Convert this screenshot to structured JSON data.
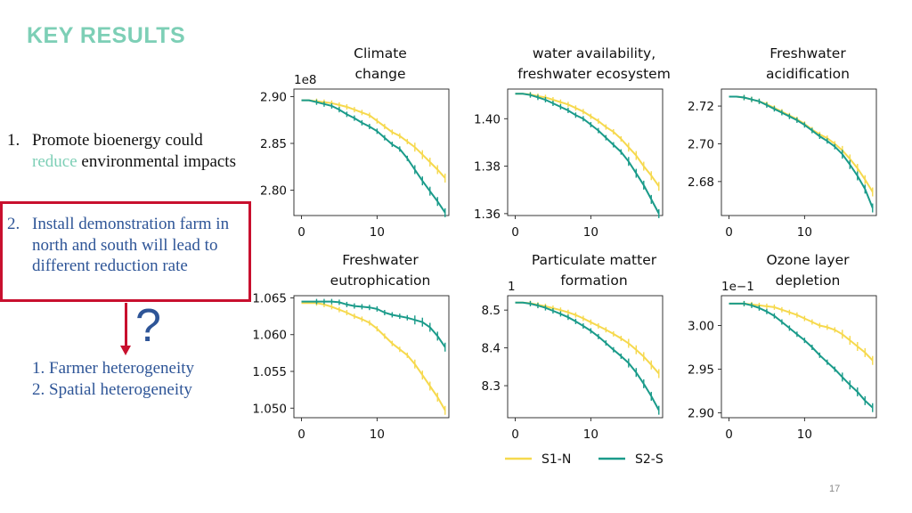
{
  "page": {
    "title": "KEY RESULTS",
    "page_number": "17"
  },
  "points": {
    "p1_num": "1.",
    "p1_part1": "Promote bioenergy could",
    "p1_accent": "reduce",
    "p1_part2": " environmental impacts",
    "p2_num": "2.",
    "p2_text": "Install demonstration farm in north and south will lead to different reduction rate",
    "question_mark": "?",
    "reasons": [
      "1.   Farmer heterogeneity",
      "2.   Spatial heterogeneity"
    ]
  },
  "colors": {
    "s1": "#f6d94e",
    "s2": "#1a9b8a",
    "accent": "#7dcfb6",
    "blue": "#2e5597",
    "red": "#c8102e"
  },
  "legend": [
    "S1-N",
    "S2-S"
  ],
  "chart_data": [
    {
      "type": "line",
      "title": [
        "Climate",
        "change"
      ],
      "offset": "1e8",
      "xticks": [
        0,
        10
      ],
      "yticks": [
        2.8,
        2.85,
        2.9
      ],
      "ytick_labels": [
        "2.80",
        "2.85",
        "2.90"
      ],
      "xlim": [
        -1,
        19.5
      ],
      "ylim": [
        2.773,
        2.908
      ],
      "series": [
        {
          "name": "S1-N",
          "x": [
            0,
            1,
            2,
            3,
            4,
            5,
            6,
            7,
            8,
            9,
            10,
            11,
            12,
            13,
            14,
            15,
            16,
            17,
            18,
            19
          ],
          "values": [
            2.896,
            2.896,
            2.895,
            2.894,
            2.893,
            2.891,
            2.889,
            2.886,
            2.883,
            2.88,
            2.874,
            2.868,
            2.862,
            2.858,
            2.852,
            2.846,
            2.838,
            2.83,
            2.822,
            2.813
          ]
        },
        {
          "name": "S2-S",
          "x": [
            0,
            1,
            2,
            3,
            4,
            5,
            6,
            7,
            8,
            9,
            10,
            11,
            12,
            13,
            14,
            15,
            16,
            17,
            18,
            19
          ],
          "values": [
            2.896,
            2.896,
            2.894,
            2.892,
            2.89,
            2.886,
            2.881,
            2.877,
            2.872,
            2.868,
            2.863,
            2.856,
            2.849,
            2.844,
            2.834,
            2.822,
            2.81,
            2.799,
            2.788,
            2.776
          ]
        }
      ]
    },
    {
      "type": "line",
      "title": [
        "water availability,",
        "freshwater ecosystem"
      ],
      "offset": "",
      "xticks": [
        0,
        10
      ],
      "yticks": [
        1.36,
        1.38,
        1.4
      ],
      "ytick_labels": [
        "1.36",
        "1.38",
        "1.40"
      ],
      "xlim": [
        -1,
        19.5
      ],
      "ylim": [
        1.3592,
        1.4125
      ],
      "series": [
        {
          "name": "S1-N",
          "x": [
            0,
            1,
            2,
            3,
            4,
            5,
            6,
            7,
            8,
            9,
            10,
            11,
            12,
            13,
            14,
            15,
            16,
            17,
            18,
            19
          ],
          "values": [
            1.4105,
            1.4105,
            1.4102,
            1.4095,
            1.409,
            1.408,
            1.407,
            1.406,
            1.4045,
            1.403,
            1.401,
            1.399,
            1.3965,
            1.3945,
            1.3915,
            1.388,
            1.3845,
            1.38,
            1.376,
            1.3715
          ]
        },
        {
          "name": "S2-S",
          "x": [
            0,
            1,
            2,
            3,
            4,
            5,
            6,
            7,
            8,
            9,
            10,
            11,
            12,
            13,
            14,
            15,
            16,
            17,
            18,
            19
          ],
          "values": [
            1.4105,
            1.4105,
            1.41,
            1.409,
            1.408,
            1.4065,
            1.405,
            1.4035,
            1.4015,
            1.4,
            1.3975,
            1.395,
            1.392,
            1.389,
            1.386,
            1.382,
            1.377,
            1.372,
            1.366,
            1.36
          ]
        }
      ]
    },
    {
      "type": "line",
      "title": [
        "Freshwater",
        "acidification"
      ],
      "offset": "",
      "xticks": [
        0,
        10
      ],
      "yticks": [
        2.68,
        2.7,
        2.72
      ],
      "ytick_labels": [
        "2.68",
        "2.70",
        "2.72"
      ],
      "xlim": [
        -1,
        19.5
      ],
      "ylim": [
        2.662,
        2.729
      ],
      "series": [
        {
          "name": "S1-N",
          "x": [
            0,
            1,
            2,
            3,
            4,
            5,
            6,
            7,
            8,
            9,
            10,
            11,
            12,
            13,
            14,
            15,
            16,
            17,
            18,
            19
          ],
          "values": [
            2.725,
            2.725,
            2.7245,
            2.7235,
            2.7225,
            2.721,
            2.719,
            2.717,
            2.715,
            2.713,
            2.7105,
            2.7075,
            2.705,
            2.703,
            2.7,
            2.6965,
            2.692,
            2.687,
            2.681,
            2.6745
          ]
        },
        {
          "name": "S2-S",
          "x": [
            0,
            1,
            2,
            3,
            4,
            5,
            6,
            7,
            8,
            9,
            10,
            11,
            12,
            13,
            14,
            15,
            16,
            17,
            18,
            19
          ],
          "values": [
            2.725,
            2.725,
            2.7245,
            2.7235,
            2.7225,
            2.7205,
            2.7185,
            2.7165,
            2.7145,
            2.7125,
            2.71,
            2.707,
            2.704,
            2.7015,
            2.6985,
            2.6945,
            2.689,
            2.683,
            2.676,
            2.666
          ]
        }
      ]
    },
    {
      "type": "line",
      "title": [
        "Freshwater",
        "eutrophication"
      ],
      "offset": "",
      "xticks": [
        0,
        10
      ],
      "yticks": [
        1.05,
        1.055,
        1.06,
        1.065
      ],
      "ytick_labels": [
        "1.050",
        "1.055",
        "1.060",
        "1.065"
      ],
      "xlim": [
        -1,
        19.5
      ],
      "ylim": [
        1.0487,
        1.0653
      ],
      "series": [
        {
          "name": "S1-N",
          "x": [
            0,
            1,
            2,
            3,
            4,
            5,
            6,
            7,
            8,
            9,
            10,
            11,
            12,
            13,
            14,
            15,
            16,
            17,
            18,
            19
          ],
          "values": [
            1.0643,
            1.0643,
            1.0643,
            1.0641,
            1.0638,
            1.0634,
            1.063,
            1.0625,
            1.0621,
            1.0616,
            1.0608,
            1.0598,
            1.0588,
            1.058,
            1.0572,
            1.056,
            1.0545,
            1.053,
            1.0515,
            1.0497
          ]
        },
        {
          "name": "S2-S",
          "x": [
            0,
            1,
            2,
            3,
            4,
            5,
            6,
            7,
            8,
            9,
            10,
            11,
            12,
            13,
            14,
            15,
            16,
            17,
            18,
            19
          ],
          "values": [
            1.0645,
            1.0645,
            1.0645,
            1.0645,
            1.0645,
            1.0644,
            1.0641,
            1.0639,
            1.0638,
            1.0637,
            1.0635,
            1.063,
            1.0627,
            1.0625,
            1.0623,
            1.062,
            1.0617,
            1.061,
            1.0598,
            1.0583
          ]
        }
      ]
    },
    {
      "type": "line",
      "title": [
        "Particulate matter",
        "formation"
      ],
      "offset": "1",
      "xticks": [
        0,
        10
      ],
      "yticks": [
        8.3,
        8.4,
        8.5
      ],
      "ytick_labels": [
        "8.3",
        "8.4",
        "8.5"
      ],
      "xlim": [
        -1,
        19.5
      ],
      "ylim": [
        8.2153,
        8.5381
      ],
      "series": [
        {
          "name": "S1-N",
          "x": [
            0,
            1,
            2,
            3,
            4,
            5,
            6,
            7,
            8,
            9,
            10,
            11,
            12,
            13,
            14,
            15,
            16,
            17,
            18,
            19
          ],
          "values": [
            8.52,
            8.52,
            8.518,
            8.514,
            8.51,
            8.505,
            8.5,
            8.494,
            8.487,
            8.478,
            8.468,
            8.458,
            8.448,
            8.437,
            8.425,
            8.412,
            8.395,
            8.377,
            8.355,
            8.332
          ]
        },
        {
          "name": "S2-S",
          "x": [
            0,
            1,
            2,
            3,
            4,
            5,
            6,
            7,
            8,
            9,
            10,
            11,
            12,
            13,
            14,
            15,
            16,
            17,
            18,
            19
          ],
          "values": [
            8.52,
            8.52,
            8.517,
            8.512,
            8.506,
            8.498,
            8.49,
            8.481,
            8.47,
            8.458,
            8.445,
            8.43,
            8.413,
            8.395,
            8.378,
            8.36,
            8.335,
            8.305,
            8.272,
            8.235
          ]
        }
      ]
    },
    {
      "type": "line",
      "title": [
        "Ozone layer",
        "depletion"
      ],
      "offset": "1e−1",
      "xticks": [
        0,
        10
      ],
      "yticks": [
        2.9,
        2.95,
        3.0
      ],
      "ytick_labels": [
        "2.90",
        "2.95",
        "3.00"
      ],
      "xlim": [
        -1,
        19.5
      ],
      "ylim": [
        2.8945,
        3.0341
      ],
      "series": [
        {
          "name": "S1-N",
          "x": [
            0,
            1,
            2,
            3,
            4,
            5,
            6,
            7,
            8,
            9,
            10,
            11,
            12,
            13,
            14,
            15,
            16,
            17,
            18,
            19
          ],
          "values": [
            3.025,
            3.025,
            3.025,
            3.024,
            3.023,
            3.022,
            3.021,
            3.018,
            3.015,
            3.012,
            3.008,
            3.004,
            3.0,
            2.998,
            2.995,
            2.99,
            2.983,
            2.976,
            2.969,
            2.96
          ]
        },
        {
          "name": "S2-S",
          "x": [
            0,
            1,
            2,
            3,
            4,
            5,
            6,
            7,
            8,
            9,
            10,
            11,
            12,
            13,
            14,
            15,
            16,
            17,
            18,
            19
          ],
          "values": [
            3.025,
            3.025,
            3.025,
            3.023,
            3.02,
            3.016,
            3.011,
            3.004,
            2.997,
            2.99,
            2.983,
            2.975,
            2.966,
            2.958,
            2.95,
            2.941,
            2.932,
            2.924,
            2.914,
            2.906
          ]
        }
      ]
    }
  ]
}
